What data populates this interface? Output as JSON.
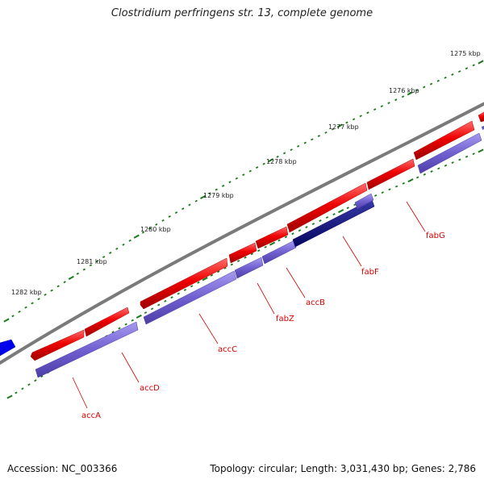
{
  "title": "Clostridium perfringens str. 13, complete genome",
  "footer": {
    "accession": "Accession: NC_003366",
    "summary": "Topology: circular; Length: 3,031,430 bp; Genes: 2,786"
  },
  "scale_labels": [
    "1275 kbp",
    "1276 kbp",
    "1277 kbp",
    "1278 kbp",
    "1279 kbp",
    "1280 kbp",
    "1281 kbp",
    "1282 kbp"
  ],
  "gene_labels": [
    "accA",
    "accD",
    "accC",
    "fabZ",
    "accB",
    "fabF",
    "fabG"
  ],
  "colors": {
    "backbone": "#7a7a7a",
    "forward_feature": "#ee0000",
    "reverse_feature": "#7060d0",
    "highlight_feature": "#0a0a80",
    "edge_feature": "#0000ee",
    "tick": "#1a7a1a",
    "label": "#d40000"
  }
}
